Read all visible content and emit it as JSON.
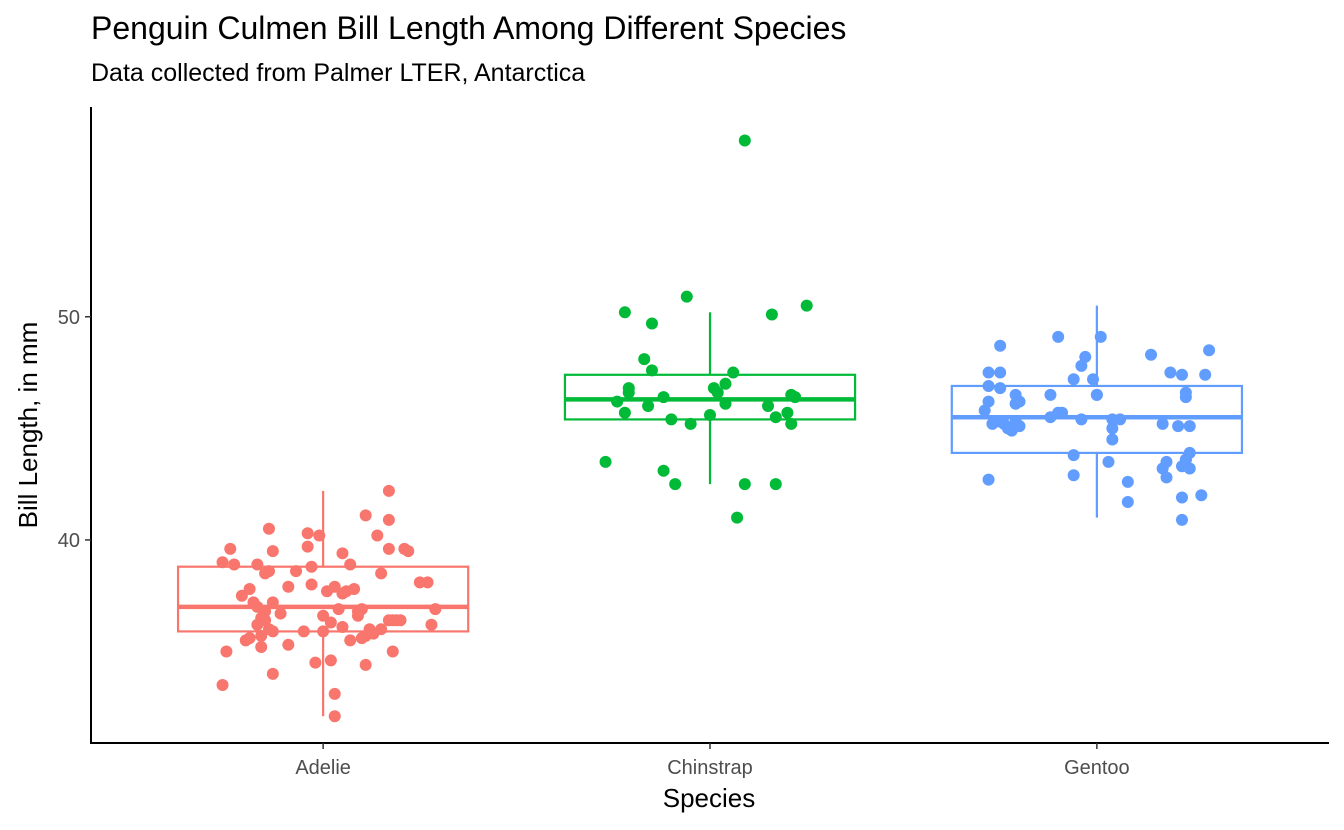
{
  "chart_data": {
    "type": "boxplot-jitter",
    "title": "Penguin Culmen Bill Length Among Different Species",
    "subtitle": "Data collected from Palmer LTER, Antarctica",
    "xlabel": "Species",
    "ylabel": "Bill Length, in mm",
    "categories": [
      "Adelie",
      "Chinstrap",
      "Gentoo"
    ],
    "ylim": [
      30.9,
      59.4
    ],
    "yticks": [
      40,
      50
    ],
    "grid": false,
    "legend": "none",
    "series": [
      {
        "category": "Adelie",
        "color": "#F8766D",
        "box": {
          "min": 32.1,
          "q1": 35.9,
          "median": 37.0,
          "q3": 38.8,
          "max": 42.2
        },
        "points": [
          [
            -0.26,
            39.0
          ],
          [
            -0.24,
            39.6
          ],
          [
            -0.23,
            38.9
          ],
          [
            -0.25,
            35.0
          ],
          [
            -0.26,
            33.5
          ],
          [
            -0.21,
            37.5
          ],
          [
            -0.2,
            35.5
          ],
          [
            -0.19,
            35.6
          ],
          [
            -0.19,
            37.8
          ],
          [
            -0.18,
            37.2
          ],
          [
            -0.17,
            38.9
          ],
          [
            -0.17,
            37.0
          ],
          [
            -0.17,
            36.2
          ],
          [
            -0.16,
            35.7
          ],
          [
            -0.16,
            35.2
          ],
          [
            -0.16,
            36.5
          ],
          [
            -0.15,
            36.8
          ],
          [
            -0.15,
            38.5
          ],
          [
            -0.15,
            36.4
          ],
          [
            -0.14,
            40.5
          ],
          [
            -0.14,
            38.6
          ],
          [
            -0.14,
            36.0
          ],
          [
            -0.13,
            37.2
          ],
          [
            -0.13,
            39.5
          ],
          [
            -0.13,
            35.9
          ],
          [
            -0.13,
            34.0
          ],
          [
            -0.11,
            36.7
          ],
          [
            -0.09,
            37.9
          ],
          [
            -0.09,
            35.3
          ],
          [
            -0.07,
            38.6
          ],
          [
            -0.05,
            35.9
          ],
          [
            -0.04,
            40.3
          ],
          [
            -0.04,
            39.7
          ],
          [
            -0.03,
            38.0
          ],
          [
            -0.03,
            38.8
          ],
          [
            -0.02,
            34.5
          ],
          [
            -0.01,
            40.2
          ],
          [
            0.0,
            36.6
          ],
          [
            0.0,
            35.9
          ],
          [
            0.01,
            37.7
          ],
          [
            0.02,
            34.6
          ],
          [
            0.02,
            36.3
          ],
          [
            0.03,
            37.9
          ],
          [
            0.03,
            33.1
          ],
          [
            0.03,
            32.1
          ],
          [
            0.04,
            36.9
          ],
          [
            0.05,
            39.4
          ],
          [
            0.05,
            36.1
          ],
          [
            0.05,
            37.6
          ],
          [
            0.06,
            37.7
          ],
          [
            0.07,
            35.5
          ],
          [
            0.07,
            38.9
          ],
          [
            0.08,
            37.8
          ],
          [
            0.09,
            36.8
          ],
          [
            0.09,
            36.6
          ],
          [
            0.1,
            36.9
          ],
          [
            0.1,
            35.6
          ],
          [
            0.11,
            34.4
          ],
          [
            0.11,
            35.7
          ],
          [
            0.11,
            41.1
          ],
          [
            0.12,
            36.0
          ],
          [
            0.13,
            35.8
          ],
          [
            0.14,
            40.2
          ],
          [
            0.15,
            36.0
          ],
          [
            0.15,
            38.5
          ],
          [
            0.17,
            36.4
          ],
          [
            0.17,
            40.9
          ],
          [
            0.17,
            42.2
          ],
          [
            0.17,
            39.6
          ],
          [
            0.18,
            36.4
          ],
          [
            0.18,
            35.0
          ],
          [
            0.19,
            36.4
          ],
          [
            0.2,
            36.4
          ],
          [
            0.21,
            39.6
          ],
          [
            0.22,
            39.5
          ],
          [
            0.25,
            38.1
          ],
          [
            0.27,
            38.1
          ],
          [
            0.28,
            36.2
          ],
          [
            0.29,
            36.9
          ]
        ]
      },
      {
        "category": "Chinstrap",
        "color": "#00BA38",
        "box": {
          "min": 42.5,
          "q1": 45.4,
          "median": 46.3,
          "q3": 47.4,
          "max": 50.2
        },
        "points": [
          [
            -0.27,
            43.5
          ],
          [
            -0.24,
            46.2
          ],
          [
            -0.22,
            50.2
          ],
          [
            -0.22,
            45.7
          ],
          [
            -0.21,
            46.6
          ],
          [
            -0.21,
            46.8
          ],
          [
            -0.17,
            48.1
          ],
          [
            -0.16,
            46.0
          ],
          [
            -0.15,
            49.7
          ],
          [
            -0.15,
            47.6
          ],
          [
            -0.12,
            46.4
          ],
          [
            -0.12,
            43.1
          ],
          [
            -0.1,
            45.4
          ],
          [
            -0.09,
            42.5
          ],
          [
            -0.06,
            50.9
          ],
          [
            -0.05,
            45.2
          ],
          [
            0.0,
            45.6
          ],
          [
            0.01,
            46.8
          ],
          [
            0.02,
            46.6
          ],
          [
            0.04,
            47.0
          ],
          [
            0.04,
            46.1
          ],
          [
            0.06,
            47.5
          ],
          [
            0.07,
            41.0
          ],
          [
            0.09,
            57.9
          ],
          [
            0.09,
            42.5
          ],
          [
            0.16,
            50.1
          ],
          [
            0.15,
            46.0
          ],
          [
            0.17,
            45.5
          ],
          [
            0.17,
            42.5
          ],
          [
            0.2,
            45.7
          ],
          [
            0.21,
            46.5
          ],
          [
            0.21,
            45.2
          ],
          [
            0.22,
            46.4
          ],
          [
            0.25,
            50.5
          ]
        ]
      },
      {
        "category": "Gentoo",
        "color": "#619CFF",
        "box": {
          "min": 41.0,
          "q1": 43.9,
          "median": 45.5,
          "q3": 46.9,
          "max": 50.5
        },
        "points": [
          [
            -0.29,
            45.8
          ],
          [
            -0.28,
            47.5
          ],
          [
            -0.28,
            46.9
          ],
          [
            -0.28,
            46.2
          ],
          [
            -0.28,
            42.7
          ],
          [
            -0.27,
            45.2
          ],
          [
            -0.25,
            45.3
          ],
          [
            -0.25,
            48.7
          ],
          [
            -0.25,
            47.5
          ],
          [
            -0.25,
            46.8
          ],
          [
            -0.24,
            45.2
          ],
          [
            -0.23,
            45.0
          ],
          [
            -0.22,
            44.9
          ],
          [
            -0.21,
            46.5
          ],
          [
            -0.21,
            45.3
          ],
          [
            -0.21,
            46.1
          ],
          [
            -0.2,
            46.2
          ],
          [
            -0.2,
            45.1
          ],
          [
            -0.12,
            46.5
          ],
          [
            -0.12,
            45.5
          ],
          [
            -0.1,
            49.1
          ],
          [
            -0.1,
            45.7
          ],
          [
            -0.09,
            45.7
          ],
          [
            -0.06,
            47.2
          ],
          [
            -0.06,
            43.8
          ],
          [
            -0.06,
            42.9
          ],
          [
            -0.04,
            47.8
          ],
          [
            -0.03,
            48.2
          ],
          [
            -0.04,
            45.4
          ],
          [
            -0.01,
            47.2
          ],
          [
            0.0,
            46.5
          ],
          [
            0.01,
            49.1
          ],
          [
            0.0,
            46.5
          ],
          [
            0.04,
            44.5
          ],
          [
            0.03,
            43.5
          ],
          [
            0.04,
            45.0
          ],
          [
            0.04,
            45.4
          ],
          [
            0.06,
            45.4
          ],
          [
            0.08,
            42.6
          ],
          [
            0.08,
            41.7
          ],
          [
            0.14,
            48.3
          ],
          [
            0.17,
            45.2
          ],
          [
            0.17,
            43.2
          ],
          [
            0.18,
            42.8
          ],
          [
            0.18,
            43.5
          ],
          [
            0.19,
            47.5
          ],
          [
            0.21,
            45.1
          ],
          [
            0.22,
            47.4
          ],
          [
            0.22,
            41.9
          ],
          [
            0.22,
            43.3
          ],
          [
            0.23,
            43.6
          ],
          [
            0.23,
            43.6
          ],
          [
            0.23,
            46.4
          ],
          [
            0.23,
            46.6
          ],
          [
            0.22,
            40.9
          ],
          [
            0.24,
            43.2
          ],
          [
            0.24,
            45.1
          ],
          [
            0.24,
            43.9
          ],
          [
            0.27,
            42.0
          ],
          [
            0.28,
            47.4
          ],
          [
            0.29,
            48.5
          ]
        ]
      }
    ]
  }
}
